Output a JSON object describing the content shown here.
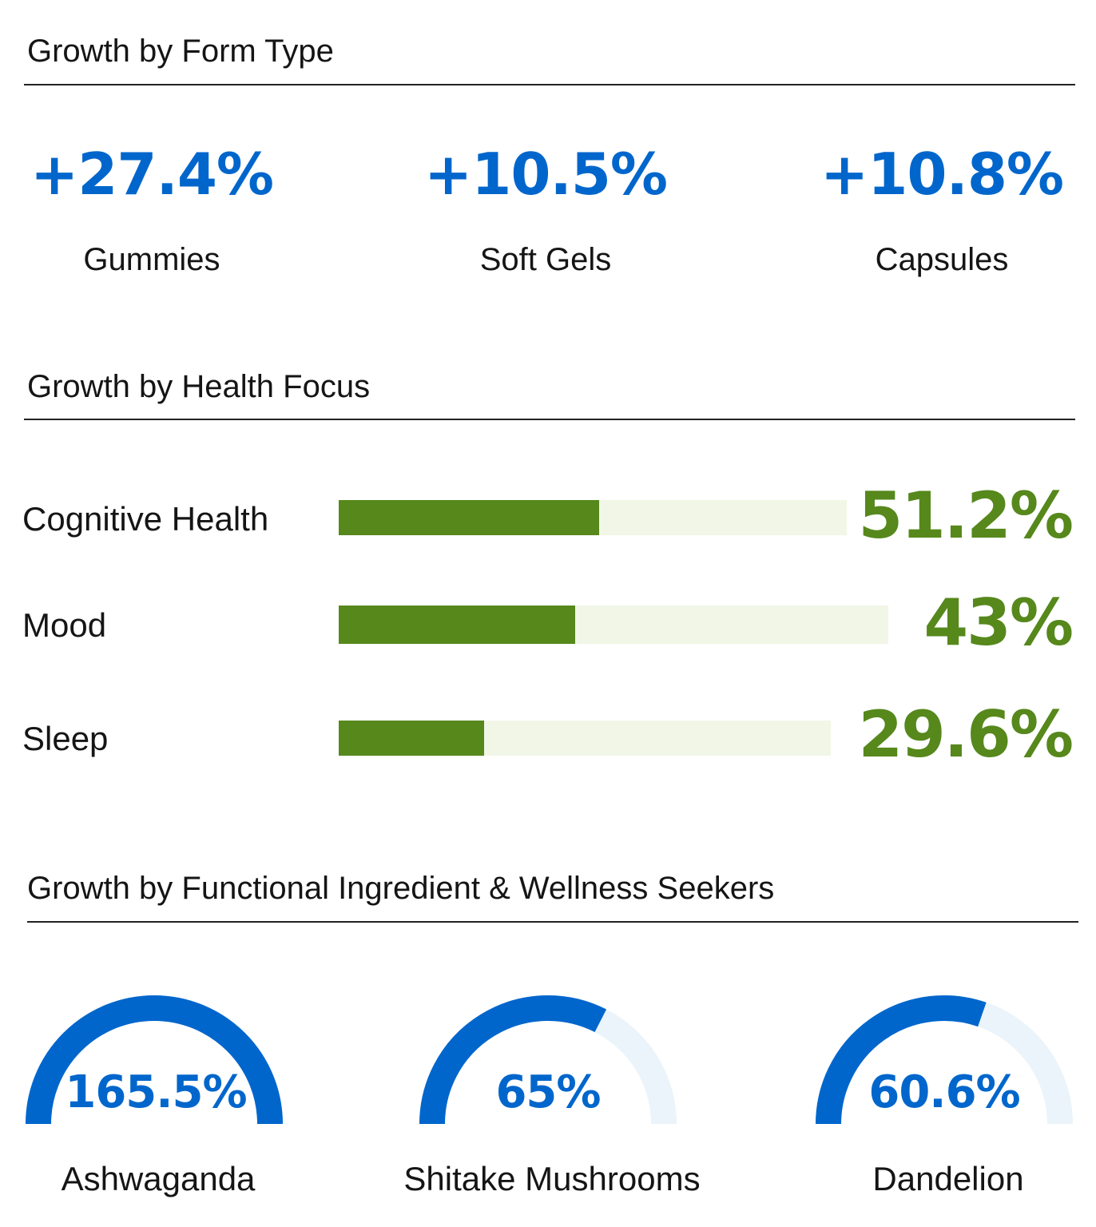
{
  "colors": {
    "blue": "#0066cc",
    "blue_track": "#eaf4fa",
    "green": "#56881c",
    "green_track": "#f1f6e6",
    "rule": "#222222"
  },
  "form_type": {
    "title": "Growth by Form Type",
    "items": [
      {
        "value": "+27.4%",
        "label": "Gummies"
      },
      {
        "value": "+10.5%",
        "label": "Soft Gels"
      },
      {
        "value": "+10.8%",
        "label": "Capsules"
      }
    ]
  },
  "health_focus": {
    "title": "Growth by Health Focus",
    "bars": [
      {
        "label": "Cognitive Health",
        "value_text": "51.2%",
        "value": 51.2,
        "track_max": 100
      },
      {
        "label": "Mood",
        "value_text": "43%",
        "value": 43,
        "track_max": 100
      },
      {
        "label": "Sleep",
        "value_text": "29.6%",
        "value": 29.6,
        "track_max": 100
      }
    ]
  },
  "functional": {
    "title": "Growth by Functional Ingredient & Wellness Seekers",
    "gauges": [
      {
        "value_text": "165.5%",
        "value": 165.5,
        "label": "Ashwaganda"
      },
      {
        "value_text": "65%",
        "value": 65,
        "label": "Shitake Mushrooms"
      },
      {
        "value_text": "60.6%",
        "value": 60.6,
        "label": "Dandelion"
      }
    ]
  },
  "chart_data": [
    {
      "type": "table",
      "title": "Growth by Form Type",
      "categories": [
        "Gummies",
        "Soft Gels",
        "Capsules"
      ],
      "values": [
        27.4,
        10.5,
        10.8
      ]
    },
    {
      "type": "bar",
      "title": "Growth by Health Focus",
      "categories": [
        "Cognitive Health",
        "Mood",
        "Sleep"
      ],
      "values": [
        51.2,
        43,
        29.6
      ]
    },
    {
      "type": "pie",
      "title": "Growth by Functional Ingredient & Wellness Seekers",
      "categories": [
        "Ashwaganda",
        "Shitake Mushrooms",
        "Dandelion"
      ],
      "values": [
        165.5,
        65,
        60.6
      ]
    }
  ]
}
